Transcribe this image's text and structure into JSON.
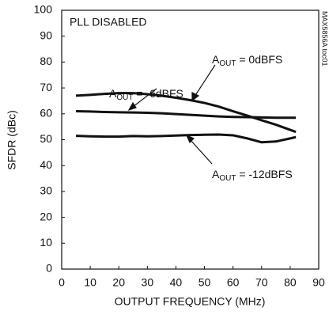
{
  "chart_data": {
    "type": "line",
    "annotation": "PLL DISABLED",
    "side_note": "MAX5856A toc01",
    "x_label": "OUTPUT FREQUENCY (MHz)",
    "y_label": "SFDR (dBc)",
    "x": [
      5,
      10,
      15,
      20,
      25,
      30,
      35,
      40,
      45,
      50,
      55,
      60,
      65,
      70,
      75,
      80,
      82
    ],
    "series": [
      {
        "name": "AOUT = 0dBFS",
        "color": "#111111",
        "values": [
          67,
          67.3,
          67.7,
          68,
          68,
          67.6,
          67,
          66.2,
          65.3,
          64.2,
          62.8,
          61,
          59.3,
          57.5,
          55.8,
          53.8,
          53
        ]
      },
      {
        "name": "AOUT = -6dBFS",
        "color": "#111111",
        "values": [
          61,
          60.9,
          60.7,
          60.6,
          60.5,
          60.4,
          60.2,
          59.9,
          59.6,
          59.3,
          59,
          58.8,
          58.7,
          58.6,
          58.5,
          58.5,
          58.5
        ]
      },
      {
        "name": "AOUT = -12dBFS",
        "color": "#111111",
        "values": [
          51.5,
          51.3,
          51.2,
          51.2,
          51.4,
          51.3,
          51.4,
          51.6,
          51.8,
          51.9,
          52,
          51.7,
          50.5,
          49,
          49.3,
          50.5,
          51
        ]
      }
    ],
    "xlim": [
      0,
      90
    ],
    "xticks": [
      0,
      10,
      20,
      30,
      40,
      50,
      60,
      70,
      80,
      90
    ],
    "ylim": [
      0,
      100
    ],
    "yticks": [
      0,
      10,
      20,
      30,
      40,
      50,
      60,
      70,
      80,
      90,
      100
    ],
    "grid": false
  }
}
